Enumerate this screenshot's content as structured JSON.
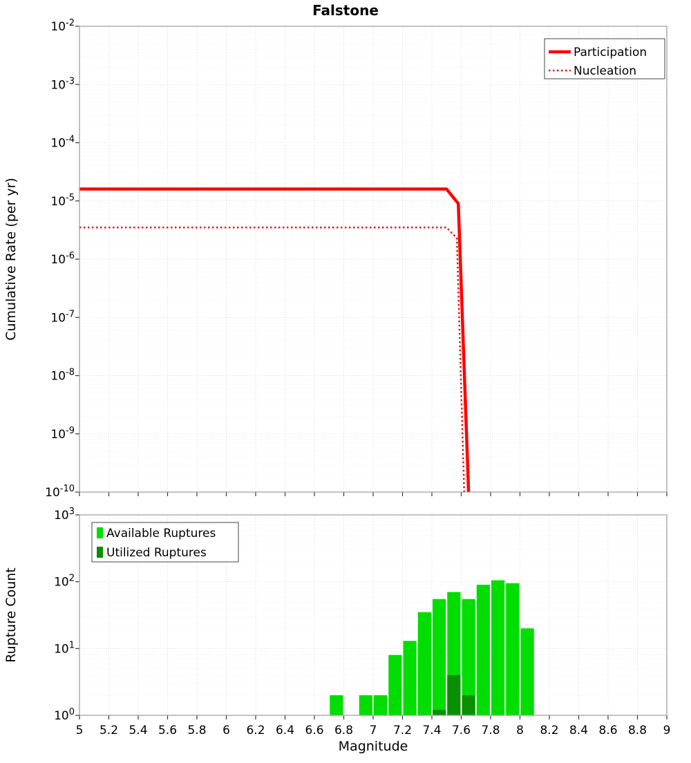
{
  "title": "Falstone",
  "xlabel": "Magnitude",
  "colors": {
    "participation": "#ff0000",
    "nucleation": "#ff0000",
    "available": "#00dd00",
    "utilized": "#089000"
  },
  "chart_data": [
    {
      "type": "line",
      "title": "Falstone",
      "xlabel": "Magnitude",
      "ylabel": "Cumulative Rate (per yr)",
      "xlim": [
        5,
        9
      ],
      "x_tick_step": 0.2,
      "y_scale": "log",
      "ylim": [
        1e-10,
        0.01
      ],
      "grid": true,
      "legend_position": "top-right",
      "series": [
        {
          "name": "Participation",
          "color": "#ff0000",
          "style": "solid",
          "width": 4.5,
          "points": [
            [
              5.0,
              1.6e-05
            ],
            [
              7.5,
              1.6e-05
            ],
            [
              7.58,
              9e-06
            ],
            [
              7.65,
              1e-10
            ]
          ]
        },
        {
          "name": "Nucleation",
          "color": "#ff0000",
          "style": "dotted",
          "width": 2.5,
          "points": [
            [
              5.0,
              3.5e-06
            ],
            [
              7.5,
              3.5e-06
            ],
            [
              7.57,
              2.3e-06
            ],
            [
              7.62,
              1e-10
            ]
          ]
        }
      ]
    },
    {
      "type": "bar",
      "title": "",
      "xlabel": "Magnitude",
      "ylabel": "Rupture Count",
      "xlim": [
        5,
        9
      ],
      "x_tick_step": 0.2,
      "y_scale": "log",
      "ylim": [
        1,
        1000
      ],
      "grid": true,
      "bar_width": 0.1,
      "legend_position": "top-left",
      "series": [
        {
          "name": "Available Ruptures",
          "color": "#00dd00",
          "x": [
            6.75,
            6.95,
            7.05,
            7.15,
            7.25,
            7.35,
            7.45,
            7.55,
            7.65,
            7.75,
            7.85,
            7.95,
            8.05
          ],
          "values": [
            2,
            2,
            2,
            8,
            13,
            35,
            55,
            70,
            55,
            90,
            105,
            95,
            20
          ]
        },
        {
          "name": "Utilized Ruptures",
          "color": "#089000",
          "x": [
            7.45,
            7.55,
            7.65
          ],
          "values": [
            1,
            4,
            2
          ]
        }
      ]
    }
  ]
}
